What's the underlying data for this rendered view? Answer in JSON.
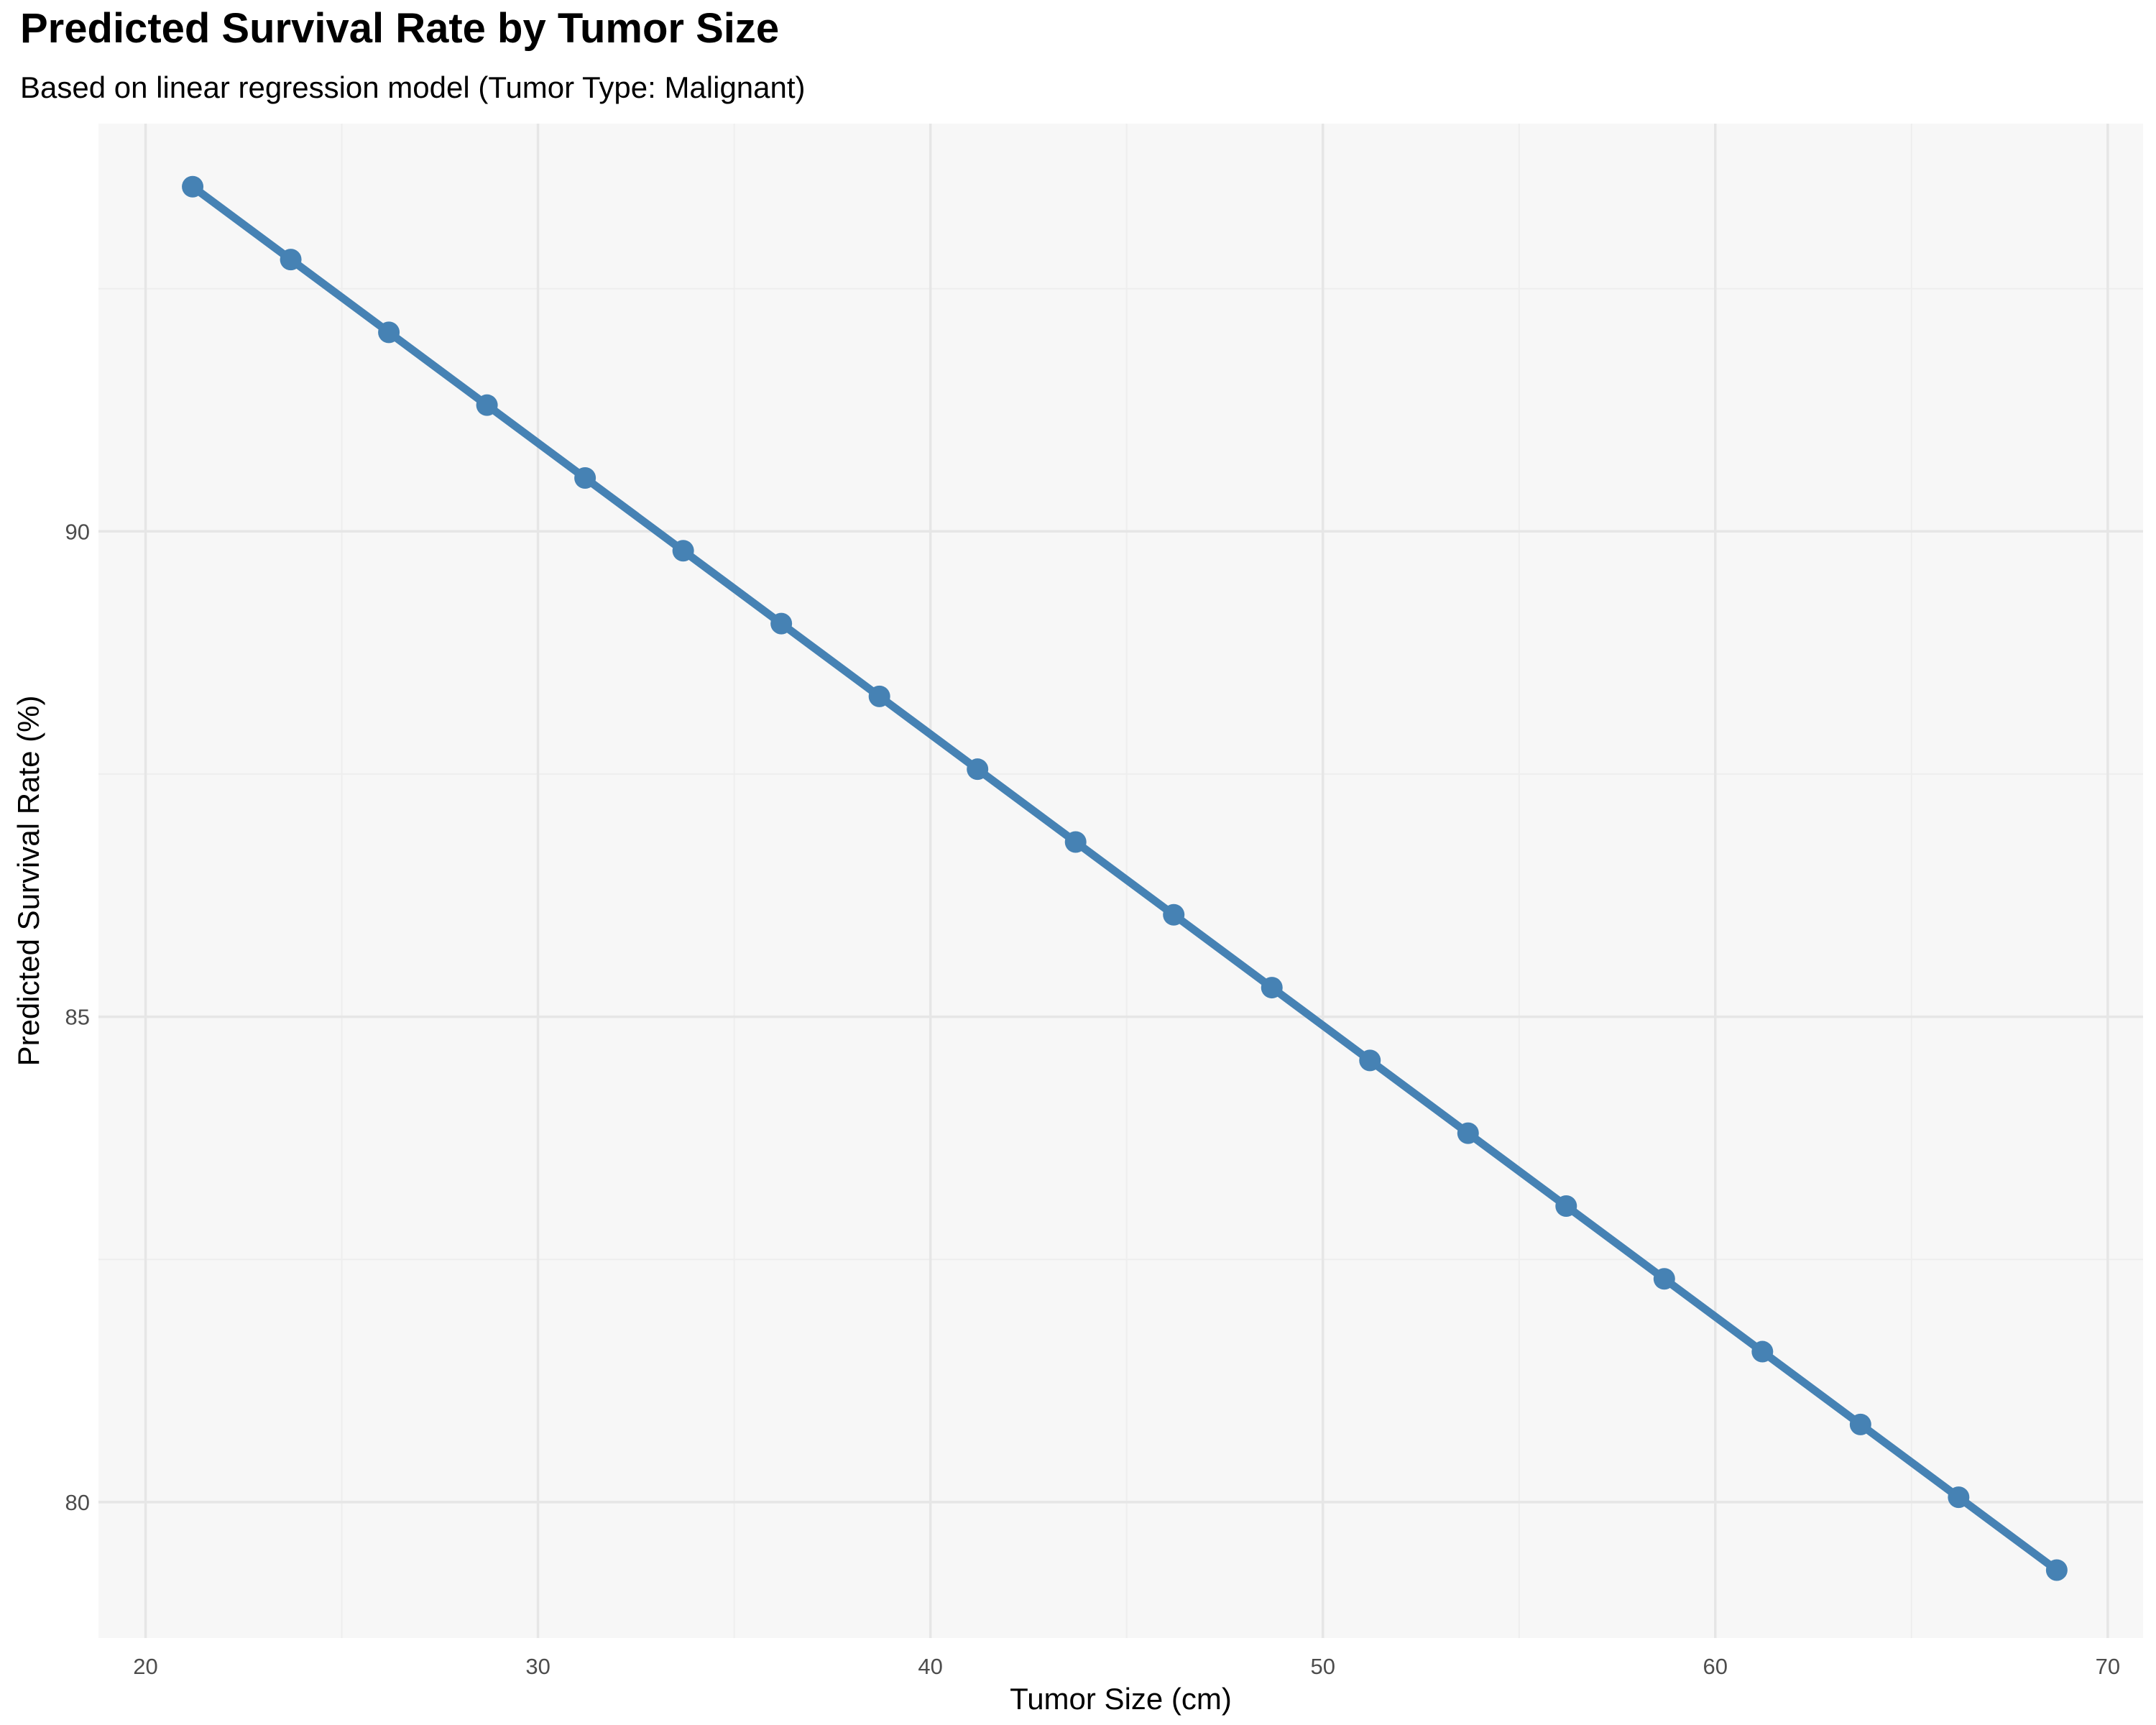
{
  "chart_data": {
    "type": "line",
    "title": "Predicted Survival Rate by Tumor Size",
    "subtitle": "Based on linear regression model (Tumor Type: Malignant)",
    "xlabel": "Tumor Size (cm)",
    "ylabel": "Predicted Survival Rate (%)",
    "xlim": [
      18.8,
      70.9
    ],
    "ylim": [
      78.6,
      94.2
    ],
    "xticks": [
      20,
      30,
      40,
      50,
      60,
      70
    ],
    "yticks": [
      80,
      85,
      90
    ],
    "grid": true,
    "legend": "none",
    "x": [
      21.2,
      23.7,
      26.2,
      28.7,
      31.2,
      33.7,
      36.2,
      38.7,
      41.2,
      43.7,
      46.2,
      48.7,
      51.2,
      53.7,
      56.2,
      58.7,
      61.2,
      63.7,
      66.2,
      68.7
    ],
    "series": [
      {
        "values": [
          93.55,
          92.8,
          92.05,
          91.3,
          90.55,
          89.8,
          89.05,
          88.3,
          87.55,
          86.8,
          86.05,
          85.3,
          84.55,
          83.8,
          83.05,
          82.3,
          81.55,
          80.8,
          80.05,
          79.3
        ]
      }
    ],
    "colors": {
      "series": "#4682B4",
      "panel_background": "#F7F7F7",
      "grid_major": "#E6E6E6",
      "grid_minor": "#EEEEEE",
      "tick_text": "#4D4D4D",
      "axis_title": "#000000"
    }
  }
}
